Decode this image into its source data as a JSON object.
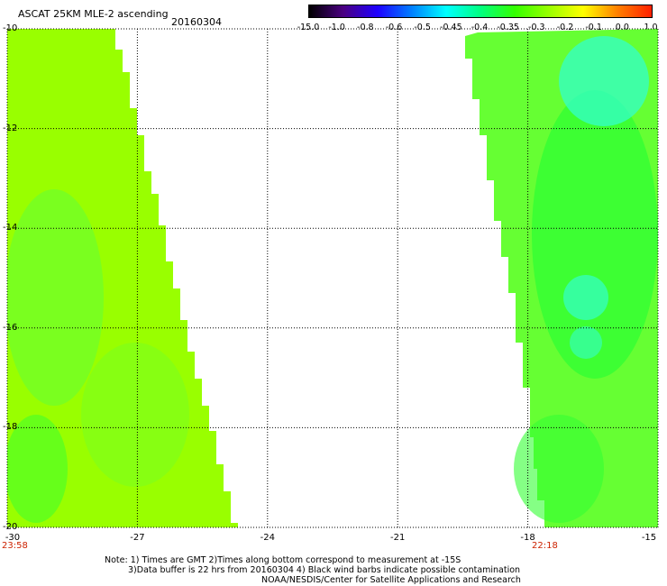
{
  "header": {
    "title": "ASCAT 25KM MLE-2 ascending",
    "date": "20160304"
  },
  "colorbar": {
    "colors": [
      "#000000",
      "#4b0082",
      "#1e00ff",
      "#0080ff",
      "#00ffff",
      "#00ff80",
      "#33ff00",
      "#99ff00",
      "#ffff00",
      "#ff8000",
      "#ff2000"
    ],
    "labels": [
      "-15.0",
      "-1.0",
      "-0.8",
      "-0.6",
      "-0.5",
      "-0.45",
      "-0.4",
      "-0.35",
      "-0.3",
      "-0.2",
      "-0.1",
      "0.0",
      "1.0"
    ]
  },
  "map": {
    "lat_ticks": [
      "-10",
      "-12",
      "-14",
      "-16",
      "-18",
      "-20"
    ],
    "lon_ticks": [
      "-30",
      "-27",
      "-24",
      "-21",
      "-18",
      "-15"
    ],
    "swath_colors": {
      "yellow_green": "#99ff00",
      "green": "#33ff33",
      "mid_green": "#66ff33",
      "aqua": "#33ffcc"
    },
    "time_left": "23:58",
    "time_right": "22:18"
  },
  "notes": {
    "line1": "Note: 1) Times are GMT 2)Times along bottom correspond to measurement at -15S",
    "line2": "3)Data buffer is 22 hrs from 20160304 4) Black wind barbs indicate possible contamination",
    "line3": "NOAA/NESDIS/Center for Satellite Applications and Research"
  }
}
